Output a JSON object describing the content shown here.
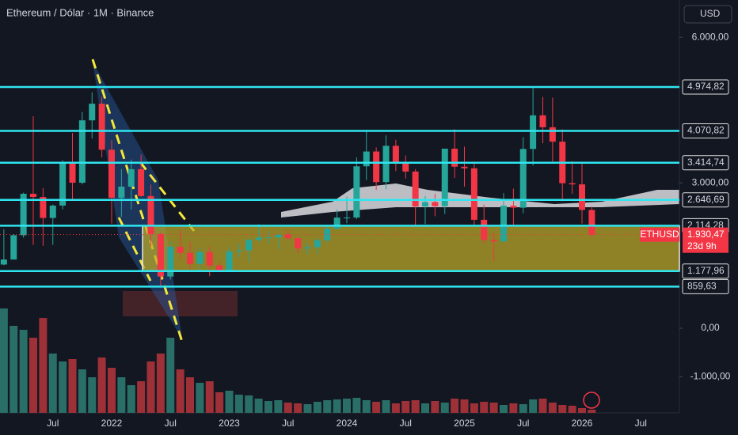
{
  "chart_data": {
    "type": "candlestick",
    "title": "Ethereum / Dólar · 1M · Binance",
    "currency": "USD",
    "categories": [
      null,
      null,
      null,
      null,
      null,
      "Jul",
      null,
      null,
      null,
      null,
      null,
      "2022",
      null,
      null,
      null,
      null,
      null,
      "Jul",
      null,
      null,
      null,
      null,
      null,
      "2023",
      null,
      null,
      null,
      null,
      null,
      "Jul",
      null,
      null,
      null,
      null,
      null,
      "2024",
      null,
      null,
      null,
      null,
      null,
      "Jul",
      null,
      null,
      null,
      null,
      null,
      "2025",
      null,
      null,
      null,
      null,
      null,
      "Jul",
      null,
      null,
      null,
      null,
      null,
      "2026",
      null,
      null,
      null,
      null,
      null,
      "Jul"
    ],
    "open": [
      1314,
      1417,
      1918,
      2773,
      2707,
      2275,
      2530,
      3433,
      3001,
      4288,
      4631,
      3682,
      2688,
      2920,
      3281,
      2727,
      1942,
      1067,
      1680,
      1554,
      1328,
      1573,
      1295,
      1196,
      1585,
      1605,
      1822,
      1869,
      1874,
      1934,
      1857,
      1645,
      1671,
      1815,
      2052,
      2282,
      2283,
      3340,
      3645,
      3015,
      3763,
      3433,
      3232,
      2513,
      2602,
      2518,
      3703,
      3332,
      3298,
      2237,
      1822,
      1793,
      2528,
      2486,
      3698,
      4391,
      4145,
      3848,
      2991,
      2967,
      2440,
      null,
      null,
      null,
      null,
      null
    ],
    "high": [
      2041,
      1943,
      2797,
      4372,
      2891,
      2551,
      3466,
      4027,
      4460,
      4868,
      4778,
      3878,
      3282,
      3479,
      3580,
      2965,
      1974,
      1783,
      2030,
      1789,
      1664,
      1681,
      1352,
      1680,
      1743,
      1857,
      2142,
      2000,
      1930,
      2030,
      1880,
      1752,
      1865,
      2138,
      2445,
      2717,
      3522,
      4093,
      3730,
      3977,
      3887,
      3563,
      3282,
      2728,
      2770,
      3682,
      4107,
      3744,
      3436,
      2550,
      1956,
      2788,
      2880,
      3941,
      4956,
      4770,
      4755,
      4100,
      3447,
      3403,
      2510,
      null,
      null,
      null,
      null,
      null
    ],
    "low": [
      1300,
      1440,
      1868,
      1719,
      1700,
      1718,
      2450,
      2652,
      2968,
      3914,
      3524,
      2159,
      2300,
      2450,
      2713,
      1700,
      880,
      1006,
      1423,
      1220,
      1191,
      1073,
      1160,
      1190,
      1461,
      1370,
      1785,
      1738,
      1626,
      1826,
      1550,
      1531,
      1521,
      1767,
      2050,
      2165,
      2250,
      3056,
      2852,
      2865,
      3240,
      3087,
      2111,
      2150,
      2310,
      2357,
      3099,
      2920,
      2120,
      1755,
      1385,
      1752,
      2111,
      2373,
      3354,
      3815,
      3435,
      2623,
      2775,
      2160,
      1900,
      null,
      null,
      null,
      null,
      null
    ],
    "close": [
      1417,
      1918,
      2773,
      2707,
      2275,
      2530,
      3433,
      3001,
      4288,
      4631,
      3682,
      2688,
      2920,
      3281,
      2727,
      1942,
      1067,
      1680,
      1554,
      1328,
      1573,
      1295,
      1196,
      1585,
      1605,
      1822,
      1869,
      1874,
      1934,
      1857,
      1645,
      1671,
      1815,
      2052,
      2282,
      2283,
      3340,
      3645,
      3015,
      3763,
      3433,
      3232,
      2513,
      2602,
      2518,
      3703,
      3332,
      3298,
      2237,
      1822,
      1793,
      2528,
      2486,
      3698,
      4391,
      4145,
      3848,
      2991,
      2967,
      2440,
      1930.47,
      null,
      null,
      null,
      null,
      null
    ],
    "volume": [
      13.2,
      11.0,
      10.5,
      9.5,
      12.0,
      7.5,
      6.5,
      6.8,
      5.5,
      4.5,
      7.0,
      5.7,
      4.5,
      3.5,
      4.0,
      6.5,
      7.5,
      9.5,
      5.5,
      4.5,
      3.8,
      4.0,
      2.6,
      2.8,
      2.3,
      2.2,
      1.8,
      1.5,
      1.6,
      1.3,
      1.2,
      1.1,
      1.4,
      1.6,
      1.7,
      1.8,
      1.9,
      1.6,
      1.4,
      1.6,
      1.2,
      1.5,
      1.6,
      1.2,
      1.5,
      1.3,
      1.8,
      1.7,
      1.2,
      1.4,
      1.3,
      1.0,
      1.2,
      1.1,
      1.7,
      1.8,
      1.3,
      1.0,
      0.9,
      0.6,
      0.4,
      null,
      null,
      null,
      null,
      null
    ],
    "up_color": "#26a69a",
    "down_color": "#f23645",
    "volume_up_color": "#2a6e68",
    "volume_down_color": "#9e3038",
    "ylim": [
      -1745,
      6770
    ],
    "yticks": [
      {
        "value": 6000,
        "label": "6.000,00"
      },
      {
        "value": 3000,
        "label": "3.000,00"
      },
      {
        "value": 0,
        "label": "0,00"
      },
      {
        "value": -1000,
        "label": "-1.000,00"
      }
    ],
    "levels": [
      {
        "value": 4974.82,
        "label": "4.974,82"
      },
      {
        "value": 4070.82,
        "label": "4.070,82"
      },
      {
        "value": 3414.74,
        "label": "3.414,74"
      },
      {
        "value": 2646.69,
        "label": "2.646,69"
      },
      {
        "value": 2114.28,
        "label": "2.114,28"
      },
      {
        "value": 1177.96,
        "label": "1.177,96"
      },
      {
        "value": 859.63,
        "label": "859,63"
      }
    ],
    "level_color": "#2ee6f0",
    "last_price": {
      "name": "ETHUSD",
      "value": 1930.47,
      "label": "1.930,47",
      "countdown": "23d 9h"
    }
  }
}
